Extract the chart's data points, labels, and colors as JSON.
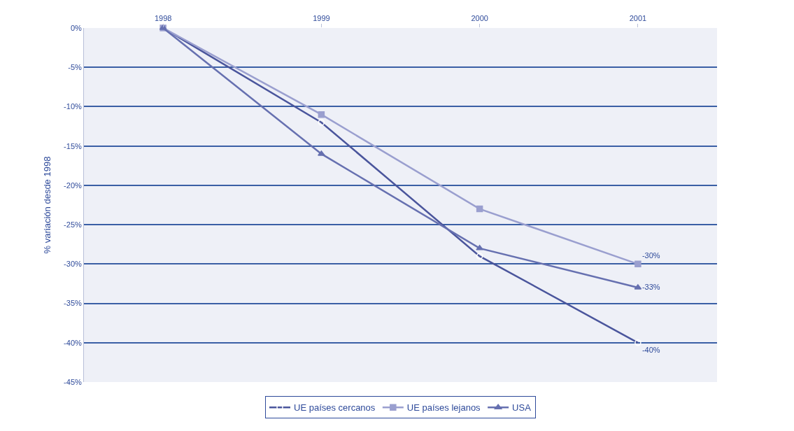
{
  "chart_data": {
    "type": "line",
    "categories": [
      "1998",
      "1999",
      "2000",
      "2001"
    ],
    "ylabel": "% variación desde 1998",
    "ylim": [
      -45,
      0
    ],
    "yticks": [
      {
        "value": 0,
        "label": "0%"
      },
      {
        "value": -5,
        "label": "-5%"
      },
      {
        "value": -10,
        "label": "-10%"
      },
      {
        "value": -15,
        "label": "-15%"
      },
      {
        "value": -20,
        "label": "-20%"
      },
      {
        "value": -25,
        "label": "-25%"
      },
      {
        "value": -30,
        "label": "-30%"
      },
      {
        "value": -35,
        "label": "-35%"
      },
      {
        "value": -40,
        "label": "-40%"
      },
      {
        "value": -45,
        "label": "-45%"
      }
    ],
    "grid": "y",
    "legend": "bottom",
    "series": [
      {
        "name": "UE países cercanos",
        "color": "#4a559c",
        "marker": "circle",
        "values": [
          0,
          -12,
          -29,
          -40
        ],
        "value_labels": [
          null,
          null,
          null,
          "-40%"
        ]
      },
      {
        "name": "UE países lejanos",
        "color": "#9a9fcf",
        "marker": "square",
        "values": [
          0,
          -11,
          -23,
          -30
        ],
        "value_labels": [
          null,
          null,
          null,
          "-30%"
        ]
      },
      {
        "name": "USA",
        "color": "#6670b0",
        "marker": "triangle",
        "values": [
          0,
          -16,
          -28,
          -33
        ],
        "value_labels": [
          null,
          null,
          null,
          "-33%"
        ]
      }
    ]
  }
}
